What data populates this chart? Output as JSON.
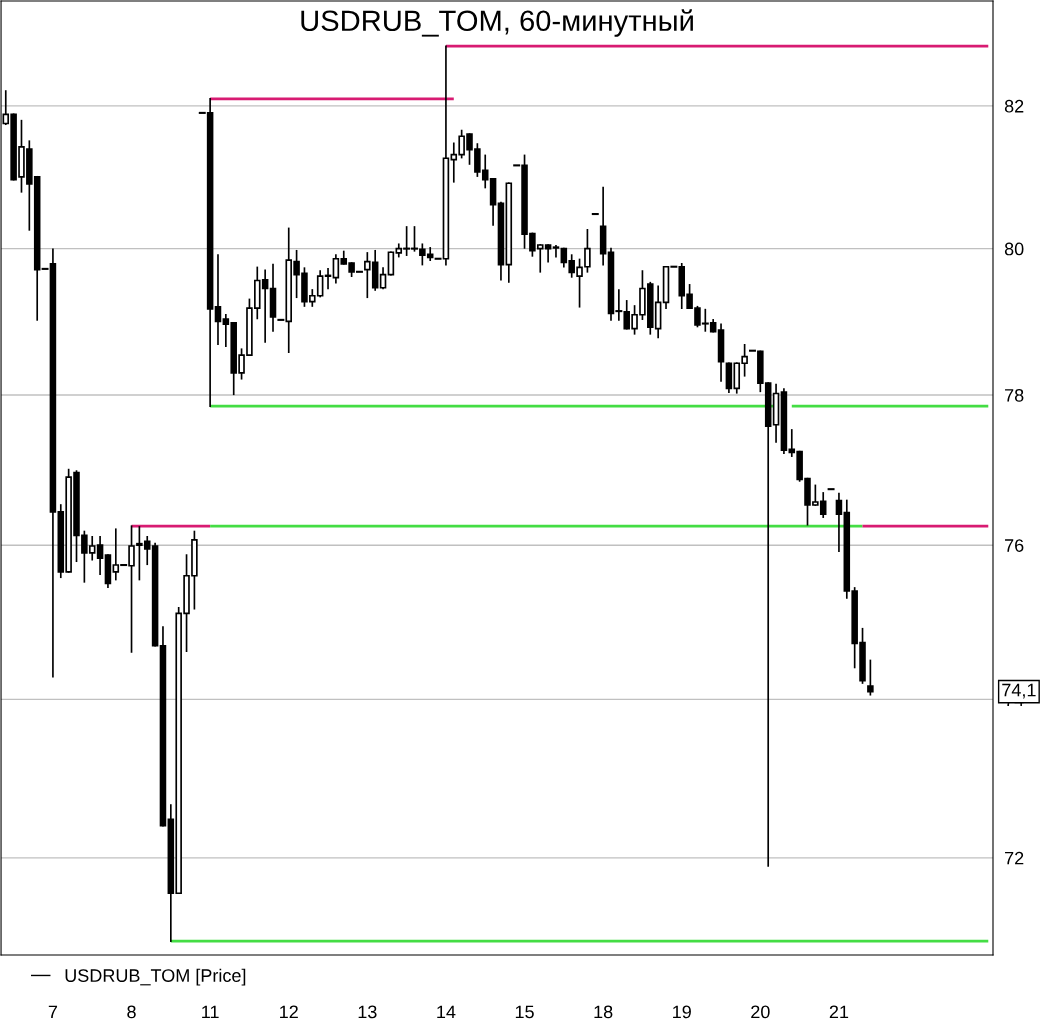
{
  "chart_data": {
    "type": "candlestick",
    "title": "USDRUB_TOM, 60-минутный",
    "log": "y",
    "grid": "y",
    "legend": "bottom left",
    "ylim": [
      70.8,
      83.5
    ],
    "yticks": [
      72,
      74,
      76,
      78,
      80,
      82
    ],
    "annotations": [
      "74,1"
    ],
    "categories": [
      null,
      null,
      null,
      null,
      null,
      null,
      "7",
      null,
      null,
      null,
      null,
      null,
      null,
      null,
      null,
      null,
      "8",
      null,
      null,
      null,
      null,
      null,
      null,
      null,
      null,
      null,
      "11",
      null,
      null,
      null,
      null,
      null,
      null,
      null,
      null,
      null,
      "12",
      null,
      null,
      null,
      null,
      null,
      null,
      null,
      null,
      null,
      "13",
      null,
      null,
      null,
      null,
      null,
      null,
      null,
      null,
      null,
      "14",
      null,
      null,
      null,
      null,
      null,
      null,
      null,
      null,
      null,
      "15",
      null,
      null,
      null,
      null,
      null,
      null,
      null,
      null,
      null,
      "18",
      null,
      null,
      null,
      null,
      null,
      null,
      null,
      null,
      null,
      "19",
      null,
      null,
      null,
      null,
      null,
      null,
      null,
      null,
      null,
      "20",
      null,
      null,
      null,
      null,
      null,
      null,
      null,
      null,
      null,
      "21",
      null,
      null,
      null,
      null,
      null,
      null,
      null,
      null,
      null,
      null,
      null,
      null,
      null,
      null,
      null,
      null,
      null,
      null,
      null
    ],
    "series": [
      {
        "name": "USDRUB_TOM [Price]",
        "color": "#000000",
        "ohlc": [
          [
            81.75,
            82.21,
            81.74,
            81.88
          ],
          [
            81.88,
            81.88,
            80.96,
            80.96
          ],
          [
            81.0,
            81.79,
            80.79,
            81.42
          ],
          [
            81.39,
            81.5,
            80.26,
            80.9
          ],
          [
            81.0,
            81.0,
            79.02,
            79.71
          ],
          [
            79.72,
            79.72,
            79.72,
            79.72
          ],
          [
            79.79,
            79.99,
            74.29,
            76.44
          ],
          [
            76.44,
            76.53,
            75.58,
            75.65
          ],
          [
            75.65,
            77.0,
            75.65,
            76.9
          ],
          [
            76.96,
            76.98,
            75.79,
            76.13
          ],
          [
            76.13,
            76.18,
            75.52,
            75.9
          ],
          [
            75.9,
            76.11,
            75.81,
            75.99
          ],
          [
            76.0,
            76.11,
            75.62,
            75.83
          ],
          [
            75.87,
            75.87,
            75.45,
            75.5
          ],
          [
            75.65,
            76.21,
            75.55,
            75.74
          ],
          [
            75.74,
            75.74,
            75.74,
            75.74
          ],
          [
            75.73,
            76.25,
            74.61,
            75.99
          ],
          [
            76.02,
            76.24,
            75.55,
            76.0
          ],
          [
            76.05,
            76.11,
            75.75,
            75.95
          ],
          [
            75.99,
            76.02,
            74.69,
            74.69
          ],
          [
            74.69,
            74.93,
            72.4,
            72.4
          ],
          [
            72.48,
            72.66,
            70.97,
            71.56
          ],
          [
            71.56,
            75.18,
            71.56,
            75.11
          ],
          [
            75.11,
            75.87,
            74.62,
            75.6
          ],
          [
            75.6,
            76.18,
            75.17,
            76.07
          ],
          [
            81.9,
            81.9,
            81.9,
            81.9
          ],
          [
            81.9,
            82.1,
            77.85,
            79.17
          ],
          [
            79.2,
            79.91,
            78.69,
            79.0
          ],
          [
            79.03,
            79.09,
            78.66,
            78.96
          ],
          [
            78.98,
            78.98,
            78.01,
            78.3
          ],
          [
            78.3,
            78.62,
            78.22,
            78.54
          ],
          [
            78.54,
            79.3,
            78.54,
            79.18
          ],
          [
            79.18,
            79.74,
            79.04,
            79.56
          ],
          [
            79.57,
            79.7,
            78.72,
            79.45
          ],
          [
            79.45,
            79.78,
            78.87,
            79.06
          ],
          [
            79.02,
            79.02,
            79.02,
            79.02
          ],
          [
            79.0,
            80.28,
            78.58,
            79.84
          ],
          [
            79.82,
            79.97,
            79.33,
            79.64
          ],
          [
            79.66,
            79.73,
            79.21,
            79.27
          ],
          [
            79.27,
            79.43,
            79.21,
            79.35
          ],
          [
            79.35,
            79.69,
            79.34,
            79.62
          ],
          [
            79.63,
            79.72,
            79.45,
            79.62
          ],
          [
            79.6,
            79.91,
            79.53,
            79.86
          ],
          [
            79.86,
            79.96,
            79.79,
            79.79
          ],
          [
            79.8,
            79.8,
            79.62,
            79.68
          ],
          [
            79.68,
            79.68,
            79.68,
            79.68
          ],
          [
            79.71,
            79.94,
            79.33,
            79.82
          ],
          [
            79.81,
            79.97,
            79.43,
            79.46
          ],
          [
            79.46,
            79.73,
            79.45,
            79.64
          ],
          [
            79.64,
            79.95,
            79.64,
            79.95
          ],
          [
            79.94,
            80.06,
            79.89,
            80.0
          ],
          [
            80.0,
            80.3,
            79.91,
            80.0
          ],
          [
            80.0,
            80.3,
            79.97,
            80.0
          ],
          [
            79.99,
            80.06,
            79.78,
            79.91
          ],
          [
            79.92,
            80.01,
            79.84,
            79.88
          ],
          [
            79.86,
            79.86,
            79.86,
            79.86
          ],
          [
            79.86,
            82.85,
            79.78,
            81.26
          ],
          [
            81.24,
            81.47,
            80.93,
            81.31
          ],
          [
            81.31,
            81.65,
            81.27,
            81.57
          ],
          [
            81.6,
            81.6,
            81.18,
            81.38
          ],
          [
            81.39,
            81.46,
            81.01,
            81.07
          ],
          [
            81.09,
            81.3,
            80.85,
            80.96
          ],
          [
            80.97,
            80.97,
            80.33,
            80.61
          ],
          [
            80.63,
            80.64,
            79.57,
            79.78
          ],
          [
            79.78,
            80.91,
            79.54,
            80.91
          ],
          [
            81.16,
            81.16,
            81.16,
            81.16
          ],
          [
            81.16,
            81.3,
            80.01,
            80.2
          ],
          [
            80.21,
            80.21,
            79.9,
            79.97
          ],
          [
            80.0,
            80.05,
            79.68,
            80.05
          ],
          [
            80.05,
            80.05,
            79.82,
            80.0
          ],
          [
            80.02,
            80.04,
            79.89,
            80.01
          ],
          [
            80.0,
            80.0,
            79.75,
            79.81
          ],
          [
            79.83,
            79.91,
            79.61,
            79.67
          ],
          [
            79.62,
            79.85,
            79.2,
            79.74
          ],
          [
            79.75,
            80.26,
            79.68,
            80.0
          ],
          [
            80.48,
            80.48,
            80.48,
            80.48
          ],
          [
            80.31,
            80.85,
            79.78,
            79.93
          ],
          [
            79.95,
            80.0,
            79.02,
            79.11
          ],
          [
            79.14,
            79.43,
            79.02,
            79.14
          ],
          [
            79.13,
            79.28,
            78.9,
            78.9
          ],
          [
            78.9,
            79.21,
            78.83,
            79.09
          ],
          [
            79.09,
            79.69,
            79.03,
            79.45
          ],
          [
            79.51,
            79.53,
            78.83,
            78.92
          ],
          [
            78.9,
            79.48,
            78.78,
            79.26
          ],
          [
            79.26,
            79.75,
            79.18,
            79.75
          ],
          [
            79.75,
            79.75,
            79.75,
            79.75
          ],
          [
            79.75,
            79.79,
            79.18,
            79.35
          ],
          [
            79.37,
            79.5,
            79.18,
            79.18
          ],
          [
            79.18,
            79.2,
            78.93,
            78.95
          ],
          [
            78.97,
            79.16,
            78.87,
            78.97
          ],
          [
            78.98,
            79.02,
            78.86,
            78.86
          ],
          [
            78.88,
            78.96,
            78.19,
            78.45
          ],
          [
            78.43,
            78.43,
            78.04,
            78.09
          ],
          [
            78.09,
            78.43,
            78.03,
            78.43
          ],
          [
            78.43,
            78.68,
            78.26,
            78.52
          ],
          [
            78.6,
            78.6,
            78.6,
            78.6
          ],
          [
            78.59,
            78.59,
            78.05,
            78.16
          ],
          [
            78.16,
            78.16,
            71.9,
            77.58
          ],
          [
            77.6,
            78.14,
            77.37,
            78.02
          ],
          [
            78.04,
            78.08,
            77.22,
            77.26
          ],
          [
            77.27,
            77.53,
            77.18,
            77.23
          ],
          [
            77.24,
            77.24,
            76.85,
            76.87
          ],
          [
            76.88,
            76.88,
            76.27,
            76.53
          ],
          [
            76.53,
            76.79,
            76.53,
            76.57
          ],
          [
            76.58,
            76.69,
            76.37,
            76.41
          ],
          [
            76.74,
            76.74,
            76.74,
            76.74
          ],
          [
            76.59,
            76.68,
            75.92,
            76.41
          ],
          [
            76.43,
            76.59,
            75.31,
            75.4
          ],
          [
            75.4,
            75.44,
            74.41,
            74.72
          ],
          [
            74.73,
            74.91,
            74.21,
            74.24
          ],
          [
            74.17,
            74.5,
            74.06,
            74.1
          ],
          null,
          null,
          null,
          null,
          null,
          null,
          null,
          null,
          null,
          null,
          null,
          null,
          null,
          null,
          null
        ]
      },
      {
        "type": "line",
        "color": "#d81b72",
        "values": [
          null,
          null,
          null,
          null,
          null,
          null,
          null,
          null,
          null,
          null,
          null,
          null,
          null,
          null,
          null,
          null,
          null,
          null,
          null,
          null,
          null,
          null,
          null,
          null,
          null,
          null,
          82.1,
          82.1,
          82.1,
          82.1,
          82.1,
          82.1,
          82.1,
          82.1,
          82.1,
          82.1,
          82.1,
          82.1,
          82.1,
          82.1,
          82.1,
          82.1,
          82.1,
          82.1,
          82.1,
          82.1,
          82.1,
          82.1,
          82.1,
          82.1,
          82.1,
          82.1,
          82.1,
          82.1,
          82.1,
          82.1,
          82.1,
          82.1,
          null,
          null,
          null,
          null,
          null,
          null,
          null,
          null,
          null,
          null,
          null,
          null,
          null,
          null,
          null,
          null,
          null,
          null,
          null,
          null,
          null,
          null,
          null,
          null,
          null,
          null,
          null,
          null,
          null,
          null,
          null,
          null,
          null,
          null,
          null,
          null,
          null,
          null,
          null,
          null,
          null,
          null,
          null,
          null,
          null,
          null,
          null,
          null,
          null,
          null,
          null,
          null,
          null,
          null,
          null,
          null,
          null,
          null,
          null,
          null,
          null,
          null,
          null,
          null,
          null,
          null,
          null,
          null
        ]
      },
      {
        "type": "line",
        "color": "#d81b72",
        "values": [
          null,
          null,
          null,
          null,
          null,
          null,
          null,
          null,
          null,
          null,
          null,
          null,
          null,
          null,
          null,
          null,
          null,
          null,
          null,
          null,
          null,
          null,
          null,
          null,
          null,
          null,
          null,
          null,
          null,
          null,
          null,
          null,
          null,
          null,
          null,
          null,
          null,
          null,
          null,
          null,
          null,
          null,
          null,
          null,
          null,
          null,
          null,
          null,
          null,
          null,
          null,
          null,
          null,
          null,
          null,
          null,
          82.85,
          82.85,
          82.85,
          82.85,
          82.85,
          82.85,
          82.85,
          82.85,
          82.85,
          82.85,
          82.85,
          82.85,
          82.85,
          82.85,
          82.85,
          82.85,
          82.85,
          82.85,
          82.85,
          82.85,
          82.85,
          82.85,
          82.85,
          82.85,
          82.85,
          82.85,
          82.85,
          82.85,
          82.85,
          82.85,
          82.85,
          82.85,
          82.85,
          82.85,
          82.85,
          82.85,
          82.85,
          82.85,
          82.85,
          82.85,
          82.85,
          82.85,
          82.85,
          82.85,
          82.85,
          82.85,
          82.85,
          82.85,
          82.85,
          82.85,
          82.85,
          82.85,
          82.85,
          82.85,
          82.85,
          82.85,
          82.85,
          82.85,
          82.85,
          82.85,
          82.85,
          82.85,
          82.85,
          82.85,
          82.85,
          82.85,
          82.85,
          82.85,
          82.85,
          82.85
        ]
      },
      {
        "type": "line",
        "color": "#44dd44",
        "values": [
          null,
          null,
          null,
          null,
          null,
          null,
          null,
          null,
          null,
          null,
          null,
          null,
          null,
          null,
          null,
          null,
          null,
          null,
          null,
          null,
          null,
          null,
          null,
          null,
          null,
          null,
          77.85,
          77.85,
          77.85,
          77.85,
          77.85,
          77.85,
          77.85,
          77.85,
          77.85,
          77.85,
          77.85,
          77.85,
          77.85,
          77.85,
          77.85,
          77.85,
          77.85,
          77.85,
          77.85,
          77.85,
          77.85,
          77.85,
          77.85,
          77.85,
          77.85,
          77.85,
          77.85,
          77.85,
          77.85,
          77.85,
          77.85,
          77.85,
          77.85,
          77.85,
          77.85,
          77.85,
          77.85,
          77.85,
          77.85,
          77.85,
          77.85,
          77.85,
          77.85,
          77.85,
          77.85,
          77.85,
          77.85,
          77.85,
          77.85,
          77.85,
          77.85,
          77.85,
          77.85,
          77.85,
          77.85,
          77.85,
          77.85,
          77.85,
          77.85,
          77.85,
          77.85,
          77.85,
          77.85,
          77.85,
          77.85,
          77.85,
          77.85,
          77.85,
          77.85,
          77.85,
          77.85,
          77.85,
          77.85,
          null,
          77.85,
          77.85,
          77.85,
          77.85,
          77.85,
          77.85,
          77.85,
          77.85,
          77.85,
          77.85,
          77.85,
          77.85,
          77.85,
          77.85,
          77.85,
          77.85,
          77.85,
          77.85,
          77.85,
          77.85,
          77.85,
          77.85,
          77.85,
          77.85,
          77.85,
          77.85
        ]
      },
      {
        "type": "line",
        "color": "#d81b72",
        "values": [
          null,
          null,
          null,
          null,
          null,
          null,
          null,
          null,
          null,
          null,
          null,
          null,
          null,
          null,
          null,
          null,
          76.25,
          76.25,
          76.25,
          76.25,
          76.25,
          76.25,
          76.25,
          76.25,
          76.25,
          76.25,
          76.25,
          null,
          null,
          null,
          null,
          null,
          null,
          null,
          null,
          null,
          null,
          null,
          null,
          null,
          null,
          null,
          null,
          null,
          null,
          null,
          null,
          null,
          null,
          null,
          null,
          null,
          null,
          null,
          null,
          null,
          null,
          null,
          null,
          null,
          null,
          null,
          null,
          null,
          null,
          null,
          null,
          null,
          null,
          null,
          null,
          null,
          null,
          null,
          null,
          null,
          null,
          null,
          null,
          null,
          null,
          null,
          null,
          null,
          null,
          null,
          null,
          null,
          null,
          null,
          null,
          null,
          null,
          null,
          null,
          null,
          null,
          null,
          null,
          null,
          null,
          null,
          null,
          null,
          null,
          null,
          null,
          null,
          null,
          null,
          null,
          null,
          null,
          null,
          null,
          null,
          null,
          null,
          null,
          null,
          null,
          null,
          null,
          null,
          null,
          null
        ]
      },
      {
        "type": "line",
        "color": "#44dd44",
        "values": [
          null,
          null,
          null,
          null,
          null,
          null,
          null,
          null,
          null,
          null,
          null,
          null,
          null,
          null,
          null,
          null,
          null,
          null,
          null,
          null,
          null,
          null,
          null,
          null,
          null,
          null,
          76.25,
          76.25,
          76.25,
          76.25,
          76.25,
          76.25,
          76.25,
          76.25,
          76.25,
          76.25,
          76.25,
          76.25,
          76.25,
          76.25,
          76.25,
          76.25,
          76.25,
          76.25,
          76.25,
          76.25,
          76.25,
          76.25,
          76.25,
          76.25,
          76.25,
          76.25,
          76.25,
          76.25,
          76.25,
          76.25,
          76.25,
          76.25,
          76.25,
          76.25,
          76.25,
          76.25,
          76.25,
          76.25,
          76.25,
          76.25,
          76.25,
          76.25,
          76.25,
          76.25,
          76.25,
          76.25,
          76.25,
          76.25,
          76.25,
          76.25,
          76.25,
          76.25,
          76.25,
          76.25,
          76.25,
          76.25,
          76.25,
          76.25,
          76.25,
          76.25,
          76.25,
          76.25,
          76.25,
          76.25,
          76.25,
          76.25,
          76.25,
          76.25,
          76.25,
          76.25,
          76.25,
          76.25,
          76.25,
          76.25,
          76.25,
          76.25,
          76.25,
          76.25,
          76.25,
          76.25,
          76.25,
          76.25,
          76.25,
          76.25,
          null,
          null,
          null,
          null,
          null,
          null,
          null,
          null,
          null,
          null,
          null,
          null,
          null,
          null,
          null,
          null
        ]
      },
      {
        "type": "line",
        "color": "#d81b72",
        "values": [
          null,
          null,
          null,
          null,
          null,
          null,
          null,
          null,
          null,
          null,
          null,
          null,
          null,
          null,
          null,
          null,
          null,
          null,
          null,
          null,
          null,
          null,
          null,
          null,
          null,
          null,
          null,
          null,
          null,
          null,
          null,
          null,
          null,
          null,
          null,
          null,
          null,
          null,
          null,
          null,
          null,
          null,
          null,
          null,
          null,
          null,
          null,
          null,
          null,
          null,
          null,
          null,
          null,
          null,
          null,
          null,
          null,
          null,
          null,
          null,
          null,
          null,
          null,
          null,
          null,
          null,
          null,
          null,
          null,
          null,
          null,
          null,
          null,
          null,
          null,
          null,
          null,
          null,
          null,
          null,
          null,
          null,
          null,
          null,
          null,
          null,
          null,
          null,
          null,
          null,
          null,
          null,
          null,
          null,
          null,
          null,
          null,
          null,
          null,
          null,
          null,
          null,
          null,
          null,
          null,
          null,
          null,
          null,
          null,
          76.25,
          76.25,
          76.25,
          76.25,
          76.25,
          76.25,
          76.25,
          76.25,
          76.25,
          76.25,
          76.25,
          76.25,
          76.25,
          76.25,
          76.25,
          76.25,
          76.25
        ]
      },
      {
        "type": "line",
        "color": "#44dd44",
        "values": [
          null,
          null,
          null,
          null,
          null,
          null,
          null,
          null,
          null,
          null,
          null,
          null,
          null,
          null,
          null,
          null,
          null,
          null,
          null,
          null,
          null,
          70.97,
          70.97,
          70.97,
          70.97,
          70.97,
          70.97,
          70.97,
          70.97,
          70.97,
          70.97,
          70.97,
          70.97,
          70.97,
          70.97,
          70.97,
          70.97,
          70.97,
          70.97,
          70.97,
          70.97,
          70.97,
          70.97,
          70.97,
          70.97,
          70.97,
          70.97,
          70.97,
          70.97,
          70.97,
          70.97,
          70.97,
          70.97,
          70.97,
          70.97,
          70.97,
          70.97,
          70.97,
          70.97,
          70.97,
          70.97,
          70.97,
          70.97,
          70.97,
          70.97,
          70.97,
          70.97,
          70.97,
          70.97,
          70.97,
          70.97,
          70.97,
          70.97,
          70.97,
          70.97,
          70.97,
          70.97,
          70.97,
          70.97,
          70.97,
          70.97,
          70.97,
          70.97,
          70.97,
          70.97,
          70.97,
          70.97,
          70.97,
          70.97,
          70.97,
          70.97,
          70.97,
          70.97,
          70.97,
          70.97,
          70.97,
          70.97,
          70.97,
          70.97,
          70.97,
          70.97,
          70.97,
          70.97,
          70.97,
          70.97,
          70.97,
          70.97,
          70.97,
          70.97,
          70.97,
          70.97,
          70.97,
          70.97,
          70.97,
          70.97,
          70.97,
          70.97,
          70.97,
          70.97,
          70.97,
          70.97,
          70.97,
          70.97,
          70.97,
          70.97,
          70.97
        ]
      }
    ]
  }
}
